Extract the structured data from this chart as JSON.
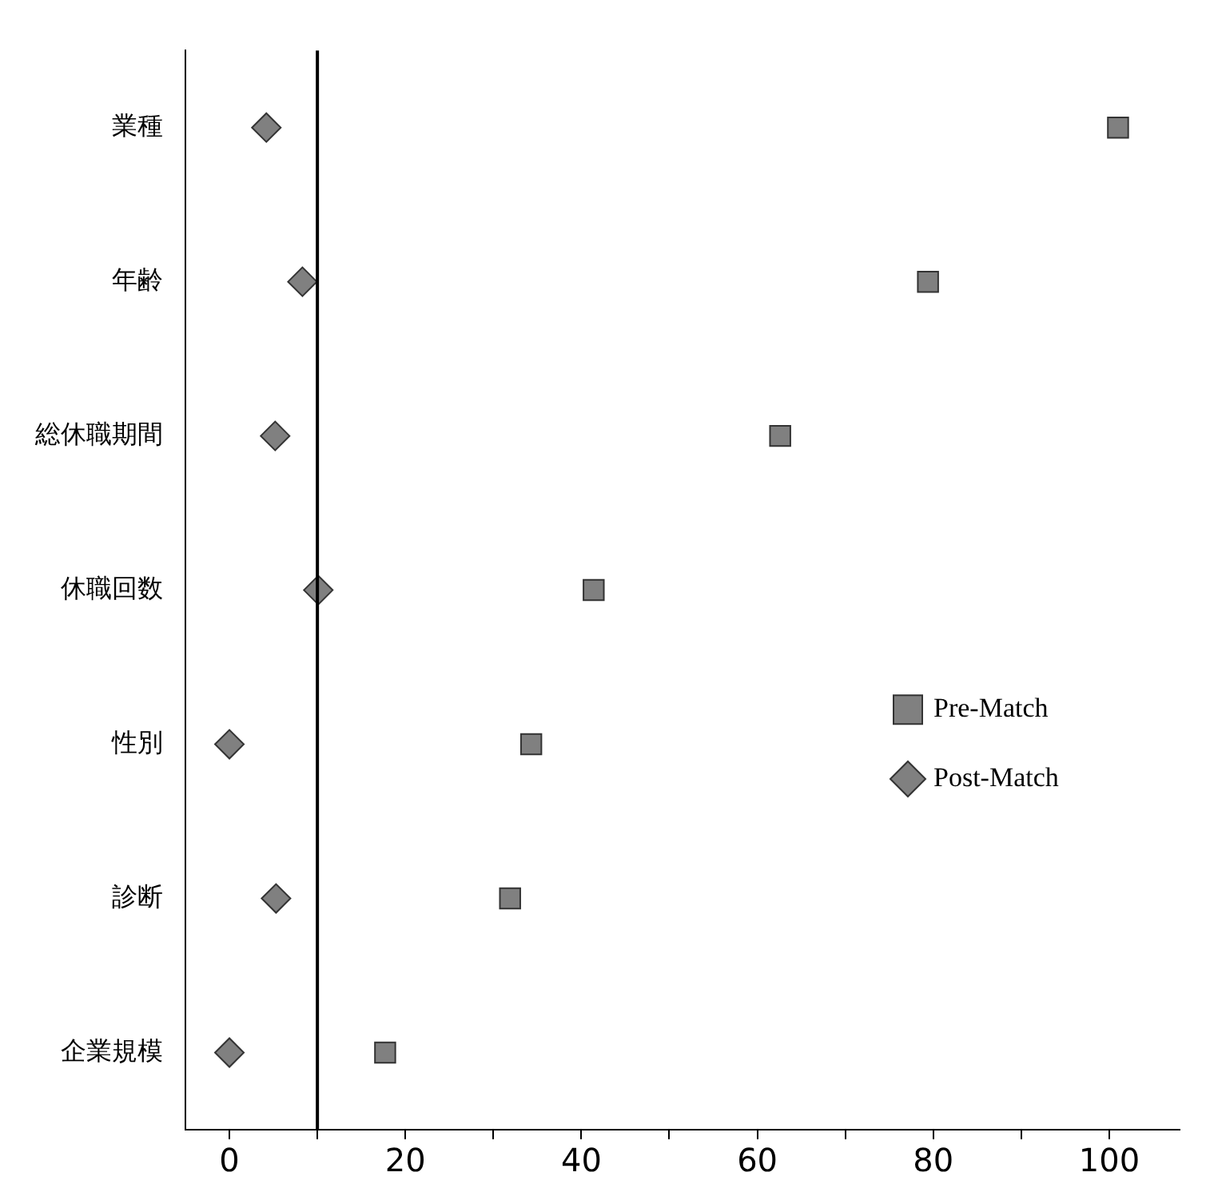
{
  "chart_data": {
    "type": "scatter",
    "orientation": "horizontal",
    "categories": [
      "業種",
      "年齢",
      "総休職期間",
      "休職回数",
      "性別",
      "診断",
      "企業規模"
    ],
    "series": [
      {
        "name": "Pre-Match",
        "color": "#808080",
        "marker": "square",
        "values": [
          101,
          79.4,
          62.6,
          41.4,
          34.3,
          31.9,
          17.7
        ]
      },
      {
        "name": "Post-Match",
        "color": "#808080",
        "marker": "diamond",
        "values": [
          4.2,
          8.3,
          5.2,
          10.1,
          0,
          5.3,
          0
        ]
      }
    ],
    "xlim": [
      -5,
      108
    ],
    "xticks": [
      0,
      {
        "value": 10,
        "label": null
      },
      20,
      {
        "value": 30,
        "label": null
      },
      40,
      {
        "value": 50,
        "label": null
      },
      60,
      {
        "value": 70,
        "label": null
      },
      80,
      {
        "value": 90,
        "label": null
      },
      100
    ],
    "ref_lines": [
      {
        "axis": "x",
        "value": 10,
        "color": "#000000"
      }
    ],
    "grid": false,
    "legend": "right"
  }
}
